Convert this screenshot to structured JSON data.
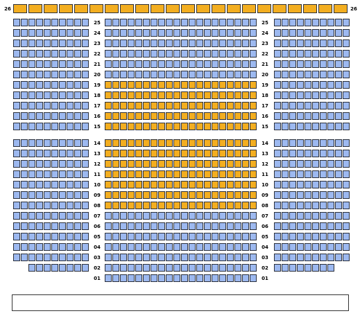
{
  "colors": {
    "available": "#9db9f0",
    "selected": "#f3ae20",
    "outline": "#2a2f3a"
  },
  "stage": {
    "label": ""
  },
  "top_row": {
    "label": "26",
    "seat_count": 22,
    "status": "selected"
  },
  "rows": [
    {
      "label": "25",
      "left": 10,
      "center": 20,
      "right": 10,
      "center_status": "available"
    },
    {
      "label": "24",
      "left": 10,
      "center": 20,
      "right": 10,
      "center_status": "available"
    },
    {
      "label": "23",
      "left": 10,
      "center": 20,
      "right": 10,
      "center_status": "available"
    },
    {
      "label": "22",
      "left": 10,
      "center": 20,
      "right": 10,
      "center_status": "available"
    },
    {
      "label": "21",
      "left": 10,
      "center": 20,
      "right": 10,
      "center_status": "available"
    },
    {
      "label": "20",
      "left": 10,
      "center": 20,
      "right": 10,
      "center_status": "available"
    },
    {
      "label": "19",
      "left": 10,
      "center": 20,
      "right": 10,
      "center_status": "selected"
    },
    {
      "label": "18",
      "left": 10,
      "center": 20,
      "right": 10,
      "center_status": "selected"
    },
    {
      "label": "17",
      "left": 10,
      "center": 20,
      "right": 10,
      "center_status": "selected"
    },
    {
      "label": "16",
      "left": 10,
      "center": 20,
      "right": 10,
      "center_status": "selected"
    },
    {
      "label": "15",
      "left": 10,
      "center": 20,
      "right": 10,
      "center_status": "selected"
    },
    {
      "label": "14",
      "left": 10,
      "center": 20,
      "right": 10,
      "center_status": "selected",
      "gap_before": true
    },
    {
      "label": "13",
      "left": 10,
      "center": 20,
      "right": 10,
      "center_status": "selected"
    },
    {
      "label": "12",
      "left": 10,
      "center": 20,
      "right": 10,
      "center_status": "selected"
    },
    {
      "label": "11",
      "left": 10,
      "center": 20,
      "right": 10,
      "center_status": "selected"
    },
    {
      "label": "10",
      "left": 10,
      "center": 20,
      "right": 10,
      "center_status": "selected"
    },
    {
      "label": "09",
      "left": 10,
      "center": 20,
      "right": 10,
      "center_status": "selected"
    },
    {
      "label": "08",
      "left": 10,
      "center": 20,
      "right": 10,
      "center_status": "selected"
    },
    {
      "label": "07",
      "left": 10,
      "center": 20,
      "right": 10,
      "center_status": "available"
    },
    {
      "label": "06",
      "left": 10,
      "center": 20,
      "right": 10,
      "center_status": "available"
    },
    {
      "label": "05",
      "left": 10,
      "center": 20,
      "right": 10,
      "center_status": "available"
    },
    {
      "label": "04",
      "left": 10,
      "center": 20,
      "right": 10,
      "center_status": "available"
    },
    {
      "label": "03",
      "left": 10,
      "center": 20,
      "right": 10,
      "center_status": "available"
    },
    {
      "label": "02",
      "left": 8,
      "center": 20,
      "right": 8,
      "center_status": "available"
    },
    {
      "label": "01",
      "left": 0,
      "center": 20,
      "right": 0,
      "center_status": "available"
    }
  ]
}
